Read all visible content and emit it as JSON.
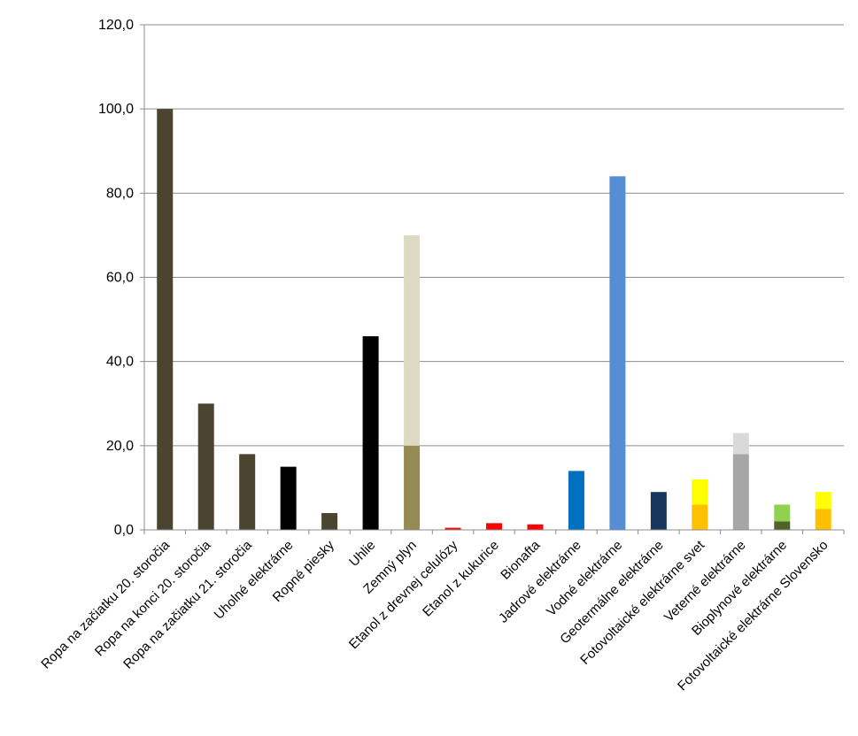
{
  "chart_data": {
    "type": "bar",
    "stacked": true,
    "ylim": [
      0,
      120
    ],
    "yticks": [
      0,
      20,
      40,
      60,
      80,
      100,
      120
    ],
    "ytick_labels": [
      "0,0",
      "20,0",
      "40,0",
      "60,0",
      "80,0",
      "100,0",
      "120,0"
    ],
    "grid": true,
    "legend": "none",
    "categories": [
      "Ropa na začiatku 20. storočia",
      "Ropa na konci 20. storočia",
      "Ropa na začiatku 21. storočia",
      "Uholné elektrárne",
      "Ropné piesky",
      "Uhlie",
      "Zemný plyn",
      "Etanol z drevnej celulózy",
      "Etanol z kukurice",
      "Bionafta",
      "Jadrové elektrárne",
      "Vodné elektrárne",
      "Geotermálne elektrárne",
      "Fotovoltaické elektrárne svet",
      "Veterné elektrárne",
      "Bioplynové elektrárne",
      "Fotovoltaické elektrárne Slovensko"
    ],
    "bars": [
      {
        "segments": [
          {
            "value": 100,
            "color": "#4a4430"
          }
        ]
      },
      {
        "segments": [
          {
            "value": 30,
            "color": "#4a4430"
          }
        ]
      },
      {
        "segments": [
          {
            "value": 18,
            "color": "#4a4430"
          }
        ]
      },
      {
        "segments": [
          {
            "value": 15,
            "color": "#000000"
          }
        ]
      },
      {
        "segments": [
          {
            "value": 4,
            "color": "#4a4430"
          }
        ]
      },
      {
        "segments": [
          {
            "value": 46,
            "color": "#000000"
          }
        ]
      },
      {
        "segments": [
          {
            "value": 20,
            "color": "#948a54"
          },
          {
            "value": 50,
            "color": "#ddd9c3"
          }
        ]
      },
      {
        "segments": [
          {
            "value": 0.5,
            "color": "#ff0000"
          }
        ]
      },
      {
        "segments": [
          {
            "value": 1.6,
            "color": "#ff0000"
          }
        ]
      },
      {
        "segments": [
          {
            "value": 1.3,
            "color": "#ff0000"
          }
        ]
      },
      {
        "segments": [
          {
            "value": 14,
            "color": "#0070c0"
          }
        ]
      },
      {
        "segments": [
          {
            "value": 84,
            "color": "#558ed5"
          }
        ]
      },
      {
        "segments": [
          {
            "value": 9,
            "color": "#17375e"
          }
        ]
      },
      {
        "segments": [
          {
            "value": 6,
            "color": "#ffc000"
          },
          {
            "value": 6,
            "color": "#ffff00"
          }
        ]
      },
      {
        "segments": [
          {
            "value": 18,
            "color": "#a6a6a6"
          },
          {
            "value": 5,
            "color": "#d9d9d9"
          }
        ]
      },
      {
        "segments": [
          {
            "value": 2,
            "color": "#4f6228"
          },
          {
            "value": 4,
            "color": "#92d050"
          }
        ]
      },
      {
        "segments": [
          {
            "value": 5,
            "color": "#ffc000"
          },
          {
            "value": 4,
            "color": "#ffff00"
          }
        ]
      }
    ]
  }
}
